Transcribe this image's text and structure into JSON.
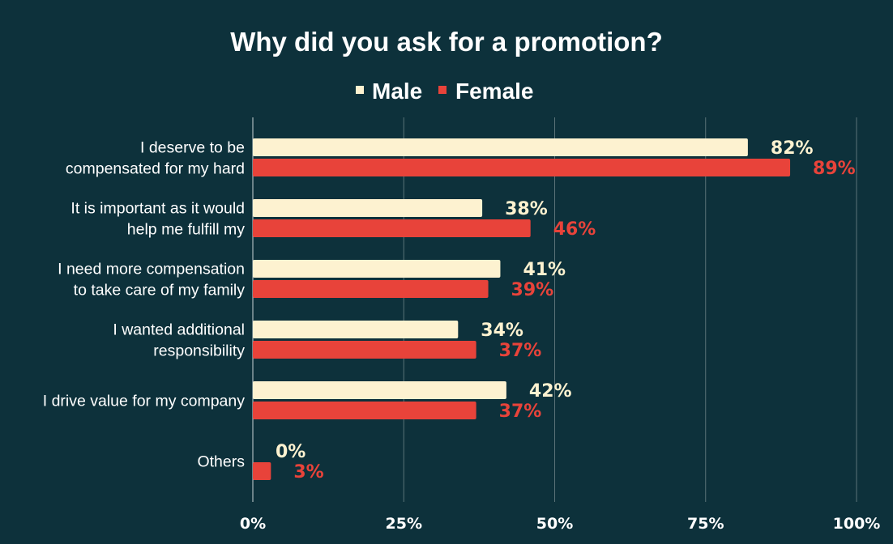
{
  "chart_data": {
    "type": "bar",
    "orientation": "horizontal",
    "title": "Why did you ask for a promotion?",
    "categories": [
      [
        "I deserve to be",
        "compensated for my hard"
      ],
      [
        "It is important as it would",
        "help me fulfill my"
      ],
      [
        "I need more compensation",
        "to take care of my family"
      ],
      [
        "I wanted additional",
        "responsibility"
      ],
      [
        "I drive value for my company"
      ],
      [
        "Others"
      ]
    ],
    "series": [
      {
        "name": "Male",
        "color": "#fdf2d0",
        "values": [
          82,
          38,
          41,
          34,
          42,
          0
        ]
      },
      {
        "name": "Female",
        "color": "#e8433a",
        "values": [
          89,
          46,
          39,
          37,
          37,
          3
        ]
      }
    ],
    "value_suffix": "%",
    "xlim": [
      0,
      100
    ],
    "xticks": [
      0,
      25,
      50,
      75,
      100
    ],
    "tick_suffix": "%",
    "grid": true,
    "legend_position": "top-center",
    "background": "#0d313b"
  }
}
